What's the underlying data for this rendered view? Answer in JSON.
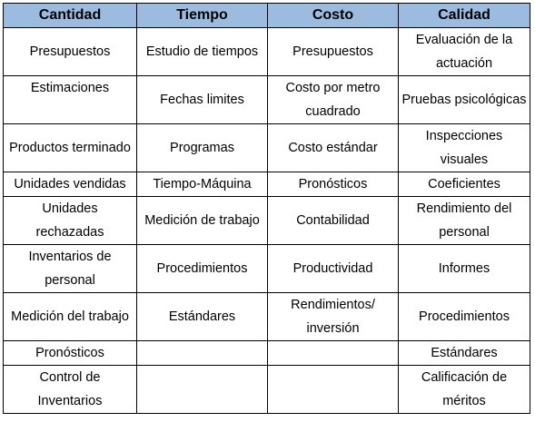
{
  "table": {
    "headers": [
      "Cantidad",
      "Tiempo",
      "Costo",
      "Calidad"
    ],
    "rows": [
      [
        "Presupuestos",
        "Estudio de tiempos",
        "Presupuestos",
        "Evaluación de la actuación"
      ],
      [
        "Estimaciones",
        "Fechas limites",
        "Costo por metro cuadrado",
        "Pruebas psicológicas"
      ],
      [
        "Productos terminado",
        "Programas",
        "Costo estándar",
        "Inspecciones visuales"
      ],
      [
        "Unidades vendidas",
        "Tiempo-Máquina",
        "Pronósticos",
        "Coeficientes"
      ],
      [
        "Unidades rechazadas",
        "Medición de trabajo",
        "Contabilidad",
        "Rendimiento del personal"
      ],
      [
        "Inventarios de personal",
        "Procedimientos",
        "Productividad",
        "Informes"
      ],
      [
        "Medición del trabajo",
        "Estándares",
        "Rendimientos/ inversión",
        "Procedimientos"
      ],
      [
        "Pronósticos",
        "",
        "",
        "Estándares"
      ],
      [
        "Control de Inventarios",
        "",
        "",
        "Calificación de méritos"
      ]
    ]
  },
  "colors": {
    "header_background": "#9bbcdf",
    "border": "#000000",
    "text": "#000000"
  }
}
